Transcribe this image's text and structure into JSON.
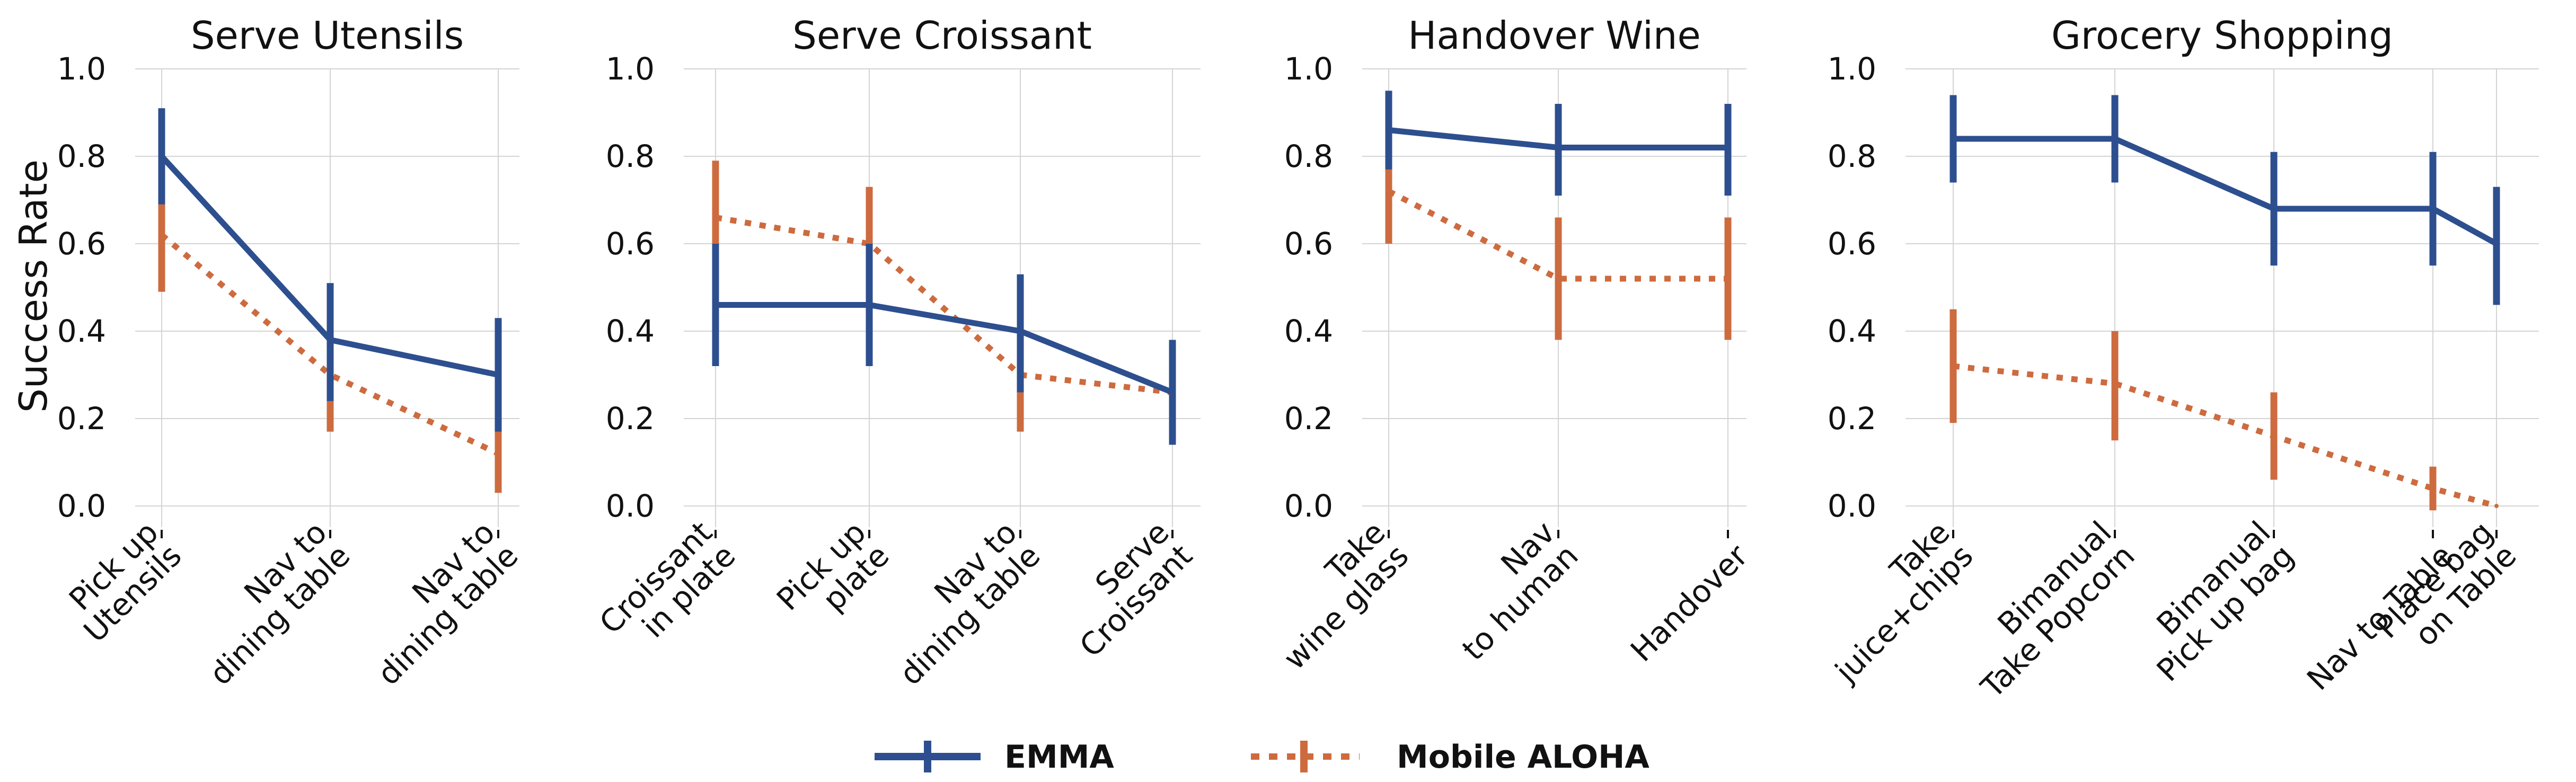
{
  "chart_data": {
    "type": "line",
    "ylabel": "Success Rate",
    "ylim": [
      0,
      1.0
    ],
    "yticks": [
      "1.0",
      "0.8",
      "0.6",
      "0.4",
      "0.2",
      "0.0"
    ],
    "grid": true,
    "colors": {
      "EMMA": "#2d4f8f",
      "Mobile ALOHA": "#cd6b3f"
    },
    "legend": {
      "position": "bottom-center",
      "entries": [
        {
          "name": "EMMA",
          "style": "solid"
        },
        {
          "name": "Mobile ALOHA",
          "style": "dotted"
        }
      ]
    },
    "panels": [
      {
        "title": "Serve Utensils",
        "categories": [
          [
            "Pick up",
            "Utensils"
          ],
          [
            "Nav to",
            "dining table"
          ],
          [
            "Nav to",
            "dining table"
          ]
        ],
        "series": [
          {
            "name": "EMMA",
            "values": [
              0.8,
              0.38,
              0.3
            ],
            "err_low": [
              0.69,
              0.24,
              0.17
            ],
            "err_high": [
              0.91,
              0.51,
              0.43
            ]
          },
          {
            "name": "Mobile ALOHA",
            "values": [
              0.62,
              0.3,
              0.12
            ],
            "err_low": [
              0.49,
              0.17,
              0.03
            ],
            "err_high": [
              0.76,
              0.42,
              0.21
            ]
          }
        ]
      },
      {
        "title": "Serve Croissant",
        "categories": [
          [
            "Croissant",
            "in plate"
          ],
          [
            "Pick up",
            "plate"
          ],
          [
            "Nav to",
            "dining table"
          ],
          [
            "Serve",
            "Croissant"
          ]
        ],
        "series": [
          {
            "name": "EMMA",
            "values": [
              0.46,
              0.46,
              0.4,
              0.26
            ],
            "err_low": [
              0.32,
              0.32,
              0.26,
              0.14
            ],
            "err_high": [
              0.6,
              0.6,
              0.53,
              0.38
            ]
          },
          {
            "name": "Mobile ALOHA",
            "values": [
              0.66,
              0.6,
              0.3,
              0.26
            ],
            "err_low": [
              0.53,
              0.46,
              0.17,
              0.14
            ],
            "err_high": [
              0.79,
              0.73,
              0.42,
              0.38
            ]
          }
        ]
      },
      {
        "title": "Handover Wine",
        "categories": [
          [
            "Take",
            "wine glass"
          ],
          [
            "Nav",
            "to human"
          ],
          [
            "Handover"
          ]
        ],
        "series": [
          {
            "name": "EMMA",
            "values": [
              0.86,
              0.82,
              0.82
            ],
            "err_low": [
              0.77,
              0.71,
              0.71
            ],
            "err_high": [
              0.95,
              0.92,
              0.92
            ]
          },
          {
            "name": "Mobile ALOHA",
            "values": [
              0.72,
              0.52,
              0.52
            ],
            "err_low": [
              0.6,
              0.38,
              0.38
            ],
            "err_high": [
              0.84,
              0.66,
              0.66
            ]
          }
        ]
      },
      {
        "title": "Grocery Shopping",
        "categories": [
          [
            "Take",
            "juice+chips"
          ],
          [
            "Bimanual",
            "Take Popcorn"
          ],
          [
            "Bimanual",
            "Pick up bag"
          ],
          [
            "Nav to Table"
          ],
          [
            "Place bag",
            "on Table"
          ]
        ],
        "series": [
          {
            "name": "EMMA",
            "values": [
              0.84,
              0.84,
              0.68,
              0.68,
              0.6
            ],
            "err_low": [
              0.74,
              0.74,
              0.55,
              0.55,
              0.46
            ],
            "err_high": [
              0.94,
              0.94,
              0.81,
              0.81,
              0.73
            ]
          },
          {
            "name": "Mobile ALOHA",
            "values": [
              0.32,
              0.28,
              0.16,
              0.04,
              0.0
            ],
            "err_low": [
              0.19,
              0.15,
              0.06,
              -0.01,
              0.0
            ],
            "err_high": [
              0.45,
              0.4,
              0.26,
              0.09,
              0.0
            ]
          }
        ]
      }
    ]
  }
}
